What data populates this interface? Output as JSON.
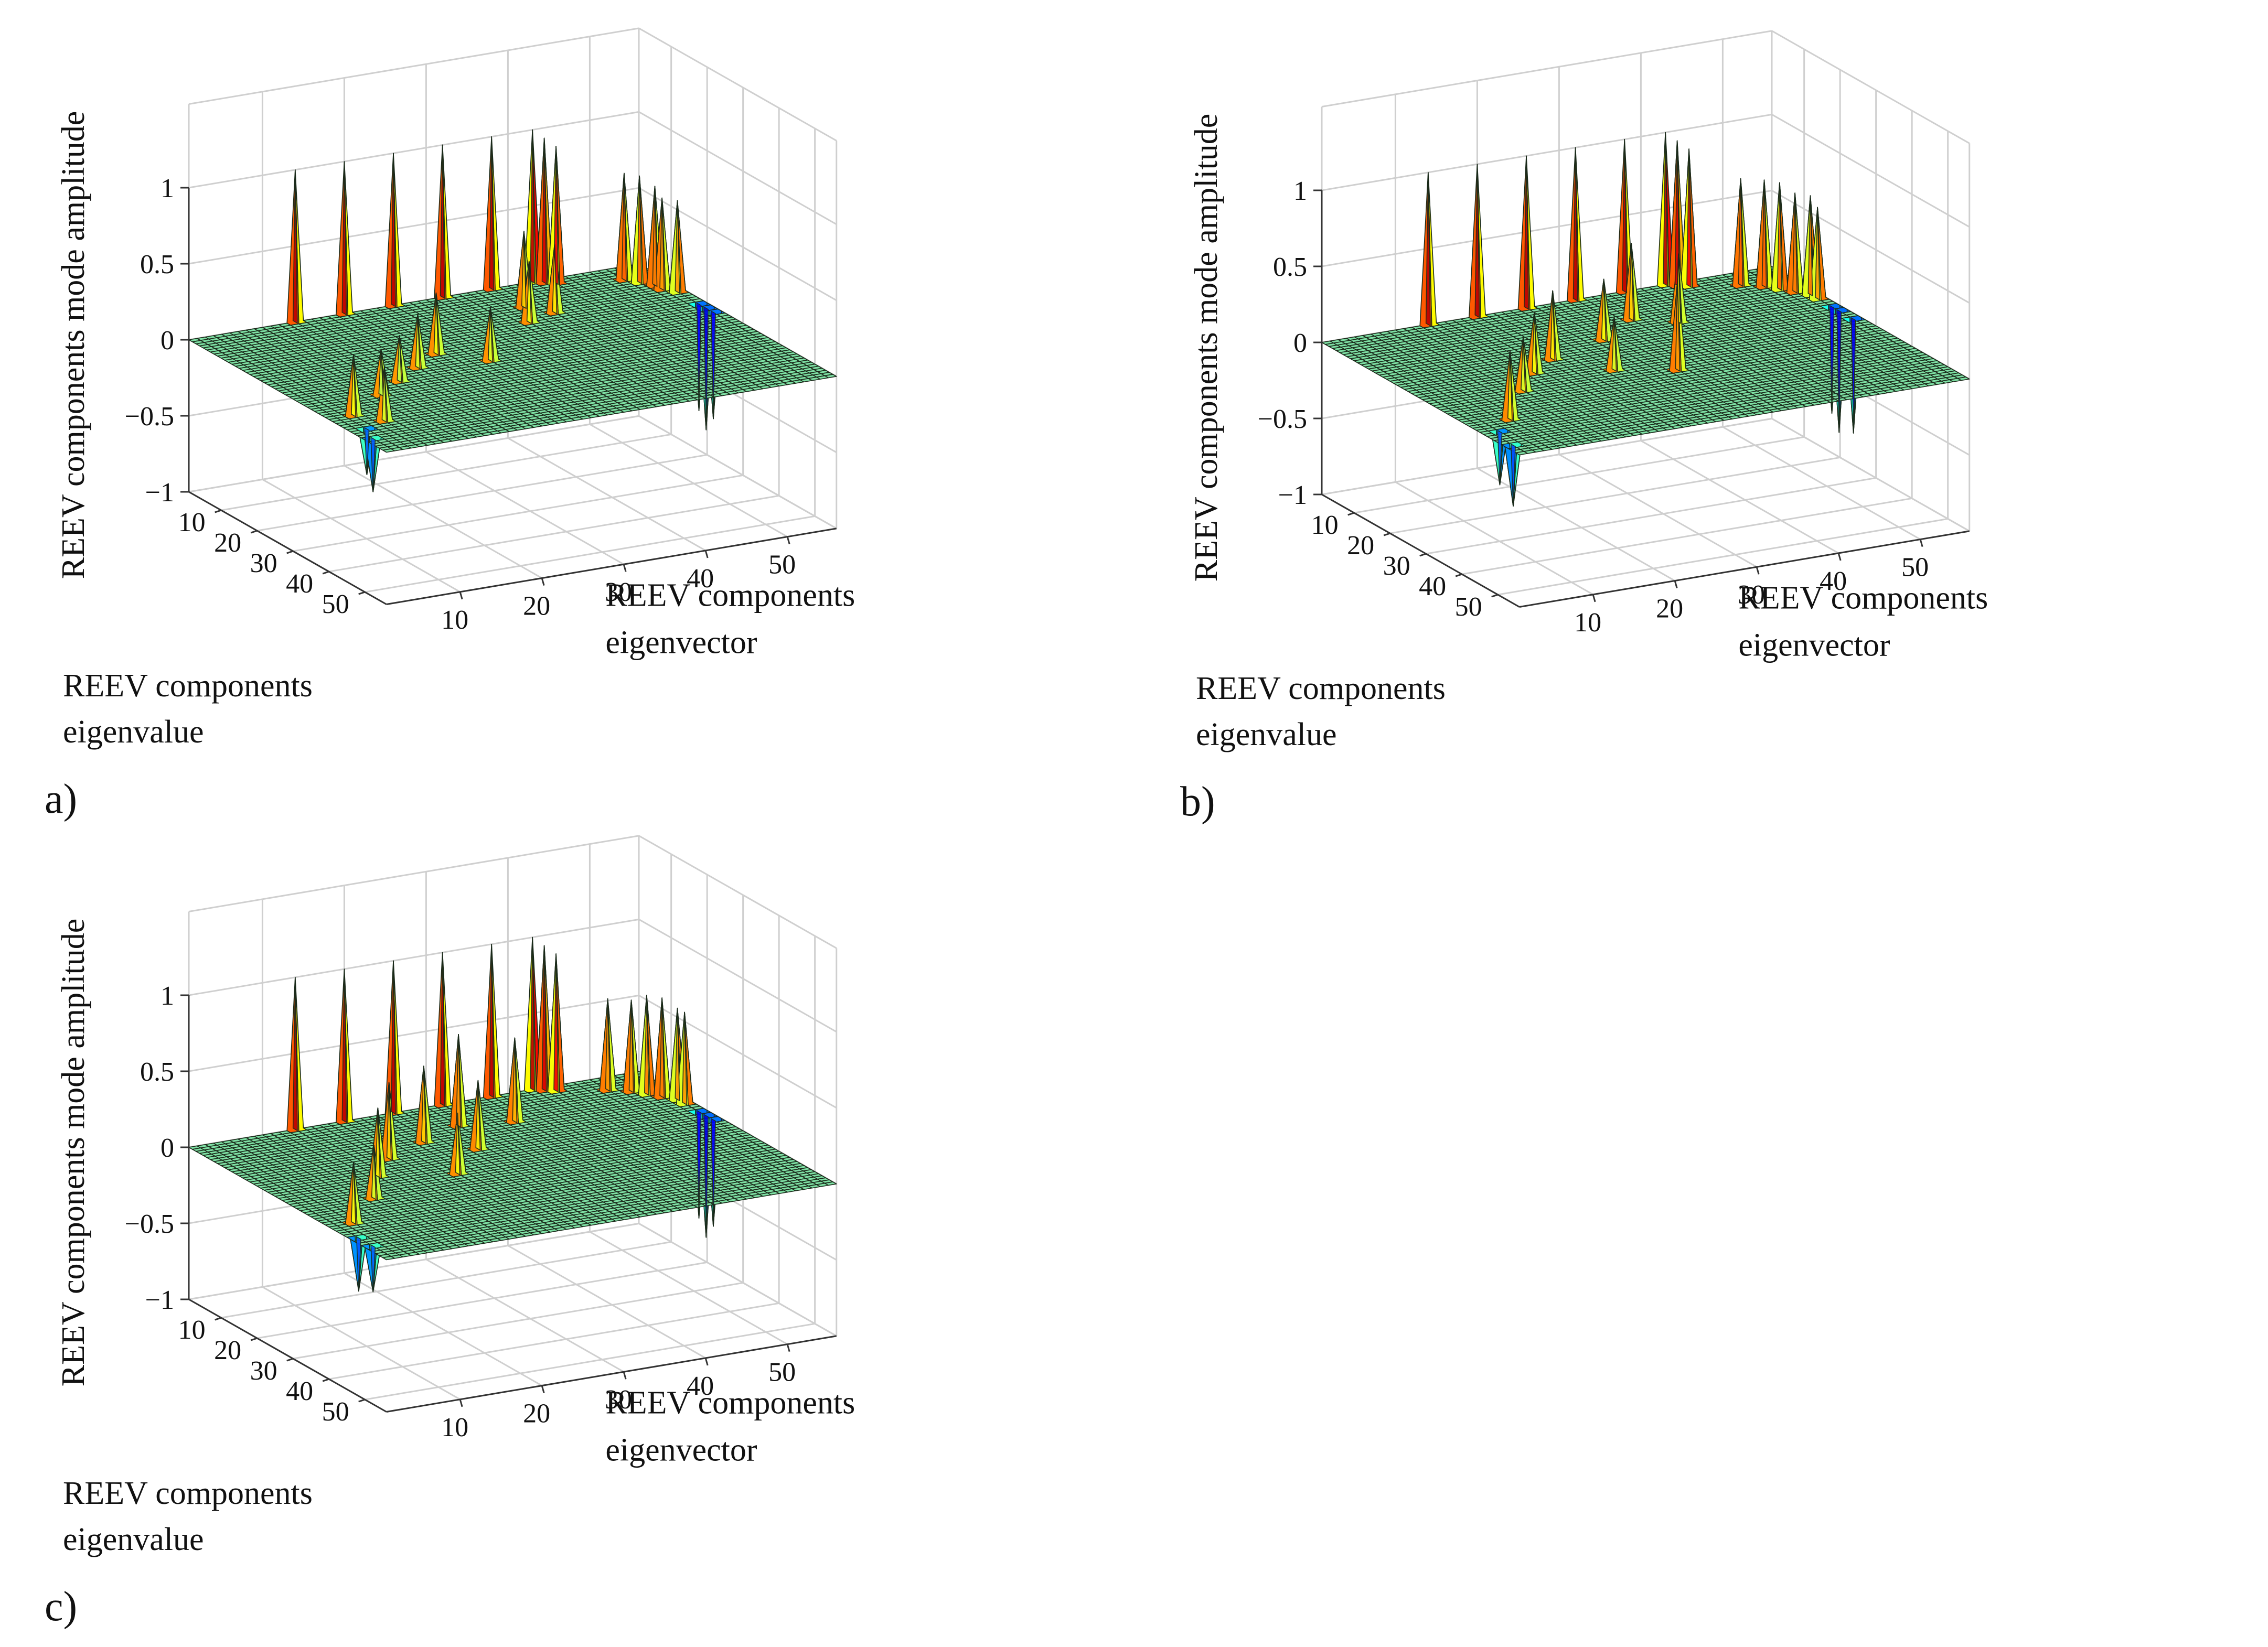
{
  "figure": {
    "panel_count": 3
  },
  "chart_data": [
    {
      "type": "surface3d",
      "panel_label": "a)",
      "xlabel": [
        "REEV components",
        "eigenvalue"
      ],
      "ylabel": [
        "REEV components",
        "eigenvector"
      ],
      "zlabel": "REEV components mode amplitude",
      "x_ticks": [
        "10",
        "20",
        "30",
        "40",
        "50"
      ],
      "y_ticks": [
        "10",
        "20",
        "30",
        "40",
        "50"
      ],
      "z_ticks": [
        "1",
        "0.5",
        "0",
        "−0.5",
        "−1"
      ],
      "xlim": [
        1,
        56
      ],
      "ylim": [
        1,
        56
      ],
      "zlim": [
        -1,
        1
      ],
      "grid": true,
      "colormap": "jet",
      "peaks": [
        {
          "x": 1,
          "y": 14,
          "z": 1.0
        },
        {
          "x": 1,
          "y": 20,
          "z": 1.0
        },
        {
          "x": 1,
          "y": 26,
          "z": 1.0
        },
        {
          "x": 1,
          "y": 32,
          "z": 1.0
        },
        {
          "x": 1,
          "y": 38,
          "z": 1.0
        },
        {
          "x": 1,
          "y": 43,
          "z": 1.0
        },
        {
          "x": 2,
          "y": 44,
          "z": 0.95
        },
        {
          "x": 3,
          "y": 45,
          "z": 0.9
        },
        {
          "x": 6,
          "y": 52,
          "z": 0.7
        },
        {
          "x": 8,
          "y": 53,
          "z": 0.7
        },
        {
          "x": 10,
          "y": 54,
          "z": 0.65
        },
        {
          "x": 12,
          "y": 54,
          "z": 0.6
        },
        {
          "x": 14,
          "y": 55,
          "z": 0.6
        },
        {
          "x": 20,
          "y": 55,
          "z": -0.7
        },
        {
          "x": 22,
          "y": 55,
          "z": -0.8
        },
        {
          "x": 24,
          "y": 55,
          "z": -0.7
        },
        {
          "x": 10,
          "y": 38,
          "z": 0.5
        },
        {
          "x": 14,
          "y": 40,
          "z": 0.45
        },
        {
          "x": 16,
          "y": 36,
          "z": 0.4
        },
        {
          "x": 22,
          "y": 22,
          "z": 0.4
        },
        {
          "x": 26,
          "y": 18,
          "z": 0.35
        },
        {
          "x": 28,
          "y": 26,
          "z": 0.35
        },
        {
          "x": 30,
          "y": 14,
          "z": 0.3
        },
        {
          "x": 34,
          "y": 10,
          "z": 0.3
        },
        {
          "x": 40,
          "y": 4,
          "z": 0.4
        },
        {
          "x": 44,
          "y": 6,
          "z": 0.35
        },
        {
          "x": 46,
          "y": 3,
          "z": -0.3
        },
        {
          "x": 50,
          "y": 2,
          "z": -0.35
        }
      ]
    },
    {
      "type": "surface3d",
      "panel_label": "b)",
      "xlabel": [
        "REEV components",
        "eigenvalue"
      ],
      "ylabel": [
        "REEV components",
        "eigenvector"
      ],
      "zlabel": "REEV components mode amplitude",
      "x_ticks": [
        "10",
        "20",
        "30",
        "40",
        "50"
      ],
      "y_ticks": [
        "10",
        "20",
        "30",
        "40",
        "50"
      ],
      "z_ticks": [
        "1",
        "0.5",
        "0",
        "−0.5",
        "−1"
      ],
      "xlim": [
        1,
        56
      ],
      "ylim": [
        1,
        56
      ],
      "zlim": [
        -1,
        1
      ],
      "grid": true,
      "colormap": "jet",
      "peaks": [
        {
          "x": 1,
          "y": 14,
          "z": 1.0
        },
        {
          "x": 1,
          "y": 20,
          "z": 1.0
        },
        {
          "x": 1,
          "y": 26,
          "z": 1.0
        },
        {
          "x": 1,
          "y": 32,
          "z": 1.0
        },
        {
          "x": 1,
          "y": 38,
          "z": 1.0
        },
        {
          "x": 1,
          "y": 43,
          "z": 1.0
        },
        {
          "x": 2,
          "y": 44,
          "z": 0.95
        },
        {
          "x": 3,
          "y": 45,
          "z": 0.9
        },
        {
          "x": 6,
          "y": 50,
          "z": 0.7
        },
        {
          "x": 8,
          "y": 52,
          "z": 0.7
        },
        {
          "x": 10,
          "y": 53,
          "z": 0.7
        },
        {
          "x": 12,
          "y": 54,
          "z": 0.65
        },
        {
          "x": 14,
          "y": 55,
          "z": 0.65
        },
        {
          "x": 16,
          "y": 55,
          "z": 0.6
        },
        {
          "x": 20,
          "y": 55,
          "z": -0.7
        },
        {
          "x": 22,
          "y": 55,
          "z": -0.8
        },
        {
          "x": 26,
          "y": 55,
          "z": -0.75
        },
        {
          "x": 12,
          "y": 34,
          "z": 0.5
        },
        {
          "x": 16,
          "y": 38,
          "z": 0.45
        },
        {
          "x": 18,
          "y": 28,
          "z": 0.4
        },
        {
          "x": 22,
          "y": 20,
          "z": 0.45
        },
        {
          "x": 26,
          "y": 16,
          "z": 0.4
        },
        {
          "x": 30,
          "y": 24,
          "z": 0.35
        },
        {
          "x": 32,
          "y": 12,
          "z": 0.35
        },
        {
          "x": 34,
          "y": 30,
          "z": 0.6
        },
        {
          "x": 42,
          "y": 6,
          "z": 0.45
        },
        {
          "x": 46,
          "y": 3,
          "z": -0.35
        },
        {
          "x": 52,
          "y": 2,
          "z": -0.4
        }
      ]
    },
    {
      "type": "surface3d",
      "panel_label": "c)",
      "xlabel": [
        "REEV components",
        "eigenvalue"
      ],
      "ylabel": [
        "REEV components",
        "eigenvector"
      ],
      "zlabel": "REEV components mode amplitude",
      "x_ticks": [
        "10",
        "20",
        "30",
        "40",
        "50"
      ],
      "y_ticks": [
        "10",
        "20",
        "30",
        "40",
        "50"
      ],
      "z_ticks": [
        "1",
        "0.5",
        "0",
        "−0.5",
        "−1"
      ],
      "xlim": [
        1,
        56
      ],
      "ylim": [
        1,
        56
      ],
      "zlim": [
        -1,
        1
      ],
      "grid": true,
      "colormap": "jet",
      "peaks": [
        {
          "x": 1,
          "y": 14,
          "z": 1.0
        },
        {
          "x": 1,
          "y": 20,
          "z": 1.0
        },
        {
          "x": 1,
          "y": 26,
          "z": 1.0
        },
        {
          "x": 1,
          "y": 32,
          "z": 1.0
        },
        {
          "x": 1,
          "y": 38,
          "z": 1.0
        },
        {
          "x": 1,
          "y": 43,
          "z": 1.0
        },
        {
          "x": 2,
          "y": 44,
          "z": 0.95
        },
        {
          "x": 3,
          "y": 45,
          "z": 0.9
        },
        {
          "x": 6,
          "y": 50,
          "z": 0.6
        },
        {
          "x": 8,
          "y": 52,
          "z": 0.6
        },
        {
          "x": 10,
          "y": 53,
          "z": 0.65
        },
        {
          "x": 12,
          "y": 54,
          "z": 0.65
        },
        {
          "x": 14,
          "y": 55,
          "z": 0.6
        },
        {
          "x": 16,
          "y": 55,
          "z": 0.6
        },
        {
          "x": 20,
          "y": 55,
          "z": -0.7
        },
        {
          "x": 22,
          "y": 55,
          "z": -0.8
        },
        {
          "x": 24,
          "y": 55,
          "z": -0.7
        },
        {
          "x": 10,
          "y": 30,
          "z": 0.6
        },
        {
          "x": 12,
          "y": 36,
          "z": 0.55
        },
        {
          "x": 14,
          "y": 24,
          "z": 0.5
        },
        {
          "x": 18,
          "y": 18,
          "z": 0.5
        },
        {
          "x": 20,
          "y": 28,
          "z": 0.45
        },
        {
          "x": 24,
          "y": 14,
          "z": 0.45
        },
        {
          "x": 28,
          "y": 22,
          "z": 0.4
        },
        {
          "x": 32,
          "y": 10,
          "z": 0.35
        },
        {
          "x": 40,
          "y": 4,
          "z": 0.4
        },
        {
          "x": 46,
          "y": 2,
          "z": -0.35
        },
        {
          "x": 50,
          "y": 2,
          "z": -0.3
        }
      ]
    }
  ]
}
